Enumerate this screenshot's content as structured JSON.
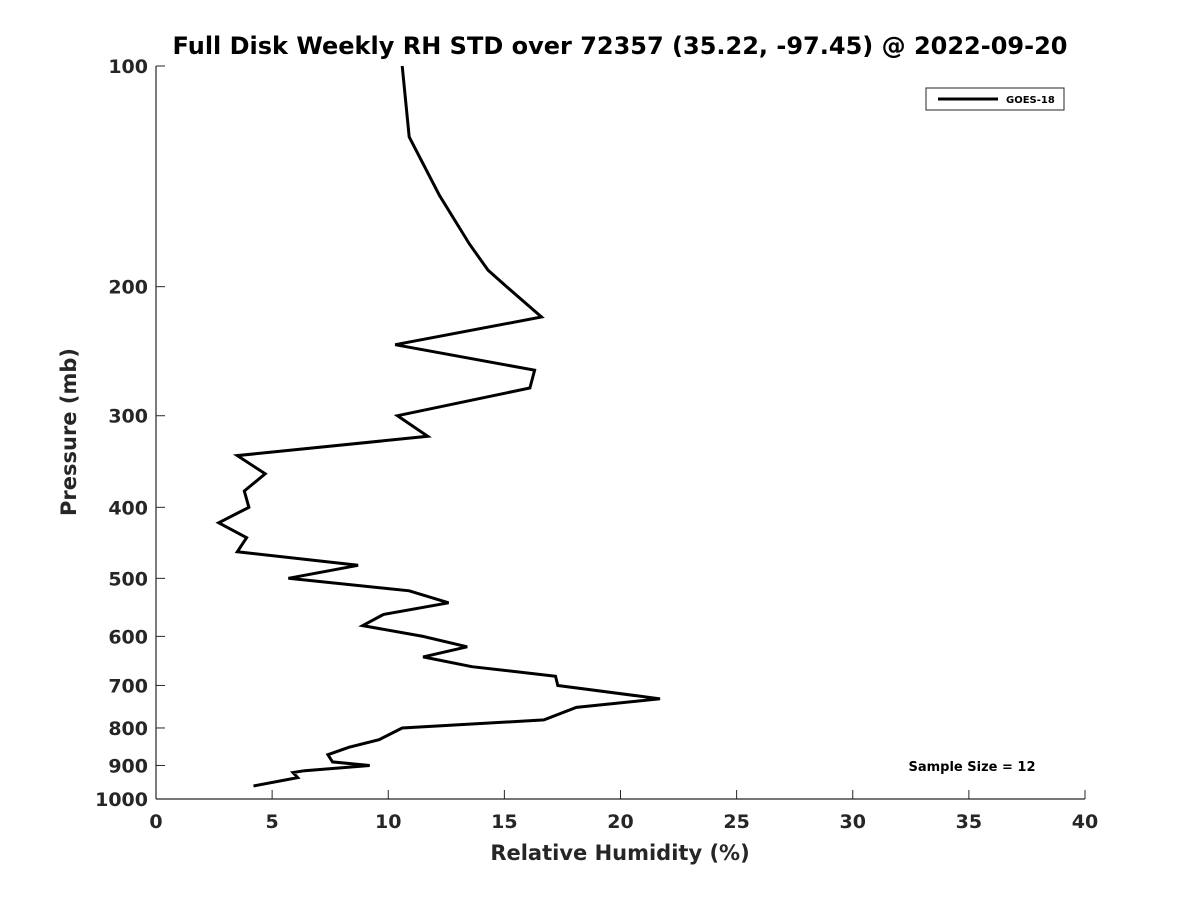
{
  "chart_data": {
    "type": "line",
    "title": "Full Disk Weekly RH STD over 72357 (35.22, -97.45) @ 2022-09-20",
    "xlabel": "Relative Humidity (%)",
    "ylabel": "Pressure (mb)",
    "xlim": [
      0,
      40
    ],
    "ylim": [
      100,
      1000
    ],
    "yscale": "log",
    "y_reversed": true,
    "xticks": [
      0,
      5,
      10,
      15,
      20,
      25,
      30,
      35,
      40
    ],
    "yticks": [
      100,
      200,
      300,
      400,
      500,
      600,
      700,
      800,
      900,
      1000
    ],
    "grid": false,
    "legend": {
      "position": "top-right",
      "entries": [
        "GOES-18"
      ]
    },
    "annotation": "Sample Size = 12",
    "series": [
      {
        "name": "GOES-18",
        "color": "#000000",
        "points": [
          {
            "rh": 10.6,
            "p": 100
          },
          {
            "rh": 10.9,
            "p": 125
          },
          {
            "rh": 12.2,
            "p": 150
          },
          {
            "rh": 13.5,
            "p": 175
          },
          {
            "rh": 14.3,
            "p": 190
          },
          {
            "rh": 15.1,
            "p": 200
          },
          {
            "rh": 16.6,
            "p": 220
          },
          {
            "rh": 10.3,
            "p": 240
          },
          {
            "rh": 16.3,
            "p": 260
          },
          {
            "rh": 16.1,
            "p": 275
          },
          {
            "rh": 10.4,
            "p": 300
          },
          {
            "rh": 11.7,
            "p": 320
          },
          {
            "rh": 3.5,
            "p": 340
          },
          {
            "rh": 4.7,
            "p": 360
          },
          {
            "rh": 3.8,
            "p": 380
          },
          {
            "rh": 4.0,
            "p": 400
          },
          {
            "rh": 2.7,
            "p": 420
          },
          {
            "rh": 3.9,
            "p": 440
          },
          {
            "rh": 3.5,
            "p": 460
          },
          {
            "rh": 8.7,
            "p": 480
          },
          {
            "rh": 5.7,
            "p": 500
          },
          {
            "rh": 10.9,
            "p": 520
          },
          {
            "rh": 12.6,
            "p": 540
          },
          {
            "rh": 9.8,
            "p": 560
          },
          {
            "rh": 8.9,
            "p": 580
          },
          {
            "rh": 11.5,
            "p": 600
          },
          {
            "rh": 13.4,
            "p": 620
          },
          {
            "rh": 11.5,
            "p": 640
          },
          {
            "rh": 13.6,
            "p": 660
          },
          {
            "rh": 17.2,
            "p": 680
          },
          {
            "rh": 17.3,
            "p": 700
          },
          {
            "rh": 21.7,
            "p": 730
          },
          {
            "rh": 18.1,
            "p": 750
          },
          {
            "rh": 16.7,
            "p": 780
          },
          {
            "rh": 10.6,
            "p": 800
          },
          {
            "rh": 9.6,
            "p": 830
          },
          {
            "rh": 8.3,
            "p": 850
          },
          {
            "rh": 7.4,
            "p": 870
          },
          {
            "rh": 7.6,
            "p": 890
          },
          {
            "rh": 9.2,
            "p": 900
          },
          {
            "rh": 6.4,
            "p": 915
          },
          {
            "rh": 5.9,
            "p": 920
          },
          {
            "rh": 6.1,
            "p": 935
          },
          {
            "rh": 4.2,
            "p": 960
          }
        ]
      }
    ]
  }
}
